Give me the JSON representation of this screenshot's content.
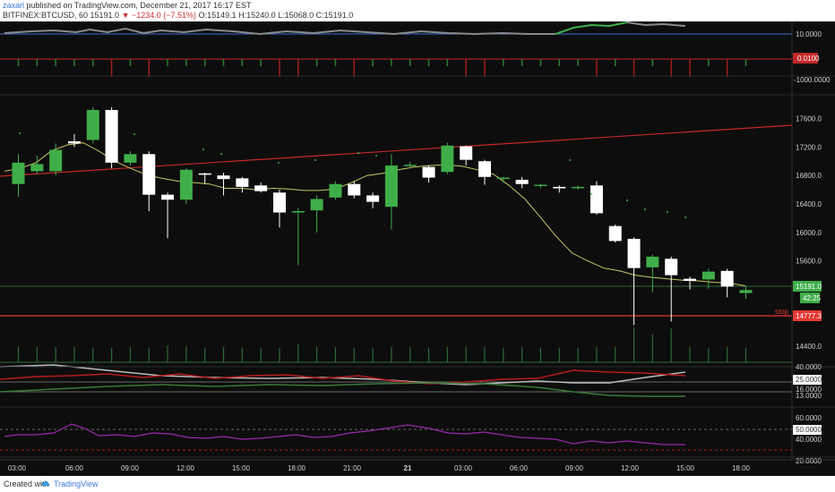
{
  "header": {
    "user": "zaxarl",
    "published_text": " published on TradingView.com, December 21, 2017 16:17 EST",
    "symbol_line": "BITFINEX:BTCUSD, 60  15191.0 ",
    "change": "−1234.0 (−7.51%)",
    "ohlc": " O:15149.1  H:15240.0  L:15068.0  C:15191.0"
  },
  "footer": {
    "created_with": "Created with",
    "brand": "TradingView"
  },
  "price_axis": {
    "ticks": [
      "17600.0",
      "17200.0",
      "16800.0",
      "16400.0",
      "16000.0",
      "15600.0",
      "14400.0"
    ],
    "current_price_label": "15191.0",
    "countdown_label": "42:25",
    "stop_text": "stop",
    "stop_label": "14777.3"
  },
  "pane1_axis": {
    "label": "10.0000"
  },
  "pane2_axis": {
    "label_red": "0.0100",
    "label2": "-1000.0000"
  },
  "pane3_axis": {
    "labels": [
      "40.0000",
      "25.0000",
      "16.0000",
      "13.0000"
    ]
  },
  "pane4_axis": {
    "labels": [
      "60.0000",
      "50.0000",
      "40.0000",
      "20.0000"
    ]
  },
  "time_axis": {
    "labels": [
      "03:00",
      "06:00",
      "09:00",
      "12:00",
      "15:00",
      "18:00",
      "21:00",
      "21",
      "03:00",
      "06:00",
      "09:00",
      "12:00",
      "15:00",
      "18:00"
    ]
  },
  "colors": {
    "background": "#0d0d0d",
    "up_candle": "#3fae49",
    "down_candle": "#ffffff",
    "ma_line": "#c8c864",
    "trendline": "#c62828",
    "stop_line": "#e53935",
    "rsi_line": "#9c27b0",
    "axis_text": "#cfcfcf"
  },
  "chart_data": {
    "type": "candlestick",
    "symbol": "BITFINEX:BTCUSD",
    "interval": "60",
    "candles": [
      {
        "open": 16680,
        "close": 16980,
        "high": 17100,
        "low": 16500
      },
      {
        "open": 16860,
        "close": 16960,
        "high": 17080,
        "low": 16820
      },
      {
        "open": 16860,
        "close": 17160,
        "high": 17250,
        "low": 16800
      },
      {
        "open": 17280,
        "close": 17250,
        "high": 17380,
        "low": 17200
      },
      {
        "open": 17300,
        "close": 17720,
        "high": 17760,
        "low": 17250
      },
      {
        "open": 17720,
        "close": 16980,
        "high": 17760,
        "low": 16900
      },
      {
        "open": 16980,
        "close": 17100,
        "high": 17140,
        "low": 16940
      },
      {
        "open": 17100,
        "close": 16530,
        "high": 17140,
        "low": 16300
      },
      {
        "open": 16530,
        "close": 16460,
        "high": 16560,
        "low": 15920
      },
      {
        "open": 16460,
        "close": 16880,
        "high": 16900,
        "low": 16400
      },
      {
        "open": 16830,
        "close": 16810,
        "high": 16840,
        "low": 16680
      },
      {
        "open": 16800,
        "close": 16750,
        "high": 16840,
        "low": 16520
      },
      {
        "open": 16760,
        "close": 16640,
        "high": 16780,
        "low": 16560
      },
      {
        "open": 16660,
        "close": 16580,
        "high": 16700,
        "low": 16560
      },
      {
        "open": 16560,
        "close": 16280,
        "high": 16600,
        "low": 16070
      },
      {
        "open": 16280,
        "close": 16300,
        "high": 16340,
        "low": 15540
      },
      {
        "open": 16310,
        "close": 16470,
        "high": 16520,
        "low": 16000
      },
      {
        "open": 16490,
        "close": 16680,
        "high": 16720,
        "low": 16460
      },
      {
        "open": 16680,
        "close": 16520,
        "high": 16720,
        "low": 16480
      },
      {
        "open": 16520,
        "close": 16430,
        "high": 16560,
        "low": 16340
      },
      {
        "open": 16360,
        "close": 16940,
        "high": 17100,
        "low": 16040
      },
      {
        "open": 16940,
        "close": 16950,
        "high": 16990,
        "low": 16900
      },
      {
        "open": 16920,
        "close": 16770,
        "high": 16940,
        "low": 16700
      },
      {
        "open": 16850,
        "close": 17220,
        "high": 17260,
        "low": 16820
      },
      {
        "open": 17210,
        "close": 17020,
        "high": 17220,
        "low": 16940
      },
      {
        "open": 17000,
        "close": 16780,
        "high": 17020,
        "low": 16670
      },
      {
        "open": 16770,
        "close": 16770,
        "high": 16780,
        "low": 16700
      },
      {
        "open": 16740,
        "close": 16680,
        "high": 16780,
        "low": 16620
      },
      {
        "open": 16670,
        "close": 16670,
        "high": 16680,
        "low": 16620
      },
      {
        "open": 16640,
        "close": 16620,
        "high": 16660,
        "low": 16560
      },
      {
        "open": 16640,
        "close": 16640,
        "high": 16660,
        "low": 16600
      },
      {
        "open": 16660,
        "close": 16270,
        "high": 16720,
        "low": 16250
      },
      {
        "open": 16090,
        "close": 15880,
        "high": 16110,
        "low": 15860
      },
      {
        "open": 15910,
        "close": 15500,
        "high": 15930,
        "low": 14700
      },
      {
        "open": 15510,
        "close": 15660,
        "high": 15690,
        "low": 15160
      },
      {
        "open": 15630,
        "close": 15400,
        "high": 15660,
        "low": 14750
      },
      {
        "open": 15350,
        "close": 15320,
        "high": 15380,
        "low": 15200
      },
      {
        "open": 15340,
        "close": 15450,
        "high": 15490,
        "low": 15210
      },
      {
        "open": 15460,
        "close": 15240,
        "high": 15490,
        "low": 15090
      },
      {
        "open": 15149.1,
        "close": 15191,
        "high": 15240,
        "low": 15068
      }
    ],
    "moving_average": [
      16860,
      16900,
      16980,
      17150,
      17230,
      17260,
      17140,
      17000,
      16900,
      16810,
      16760,
      16720,
      16700,
      16680,
      16620,
      16620,
      16600,
      16620,
      16610,
      16590,
      16590,
      16610,
      16700,
      16800,
      16830,
      16880,
      16920,
      16940,
      16950,
      16930,
      16880,
      16820,
      16660,
      16470,
      16210,
      15940,
      15710,
      15600,
      15500,
      15460,
      15400,
      15370,
      15350,
      15330,
      15320,
      15300,
      15290,
      15250
    ]
  }
}
